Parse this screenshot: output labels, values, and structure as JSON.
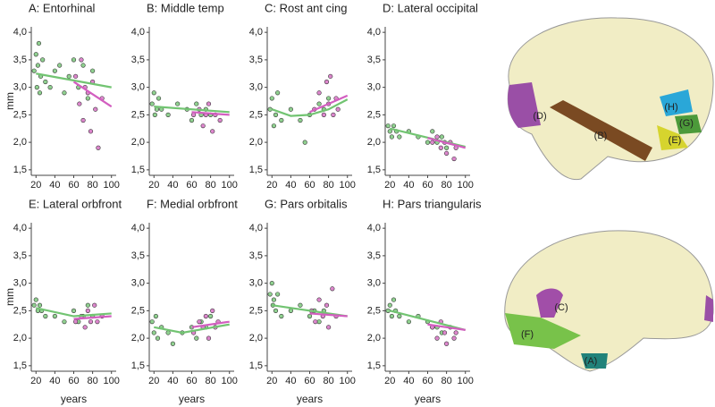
{
  "chart_data": [
    {
      "type": "scatter",
      "title": "A: Entorhinal",
      "ylabel": "mm",
      "xlim": [
        15,
        105
      ],
      "ylim": [
        1.4,
        4.1
      ],
      "xticks": [
        20,
        40,
        60,
        80,
        100
      ],
      "yticks": [
        {
          "value": 1.5,
          "label": "1,5"
        },
        {
          "value": 2,
          "label": "2,0"
        },
        {
          "value": 2.5,
          "label": "2,5"
        },
        {
          "value": 3,
          "label": "3,0"
        },
        {
          "value": 3.5,
          "label": "3,5"
        },
        {
          "value": 4,
          "label": "4,0"
        }
      ],
      "series": [
        {
          "kind": "points",
          "color": "#8fd08f",
          "x": [
            18,
            20,
            21,
            22,
            23,
            24,
            25,
            27,
            30,
            35,
            40,
            45,
            50,
            55,
            60,
            65,
            70,
            75,
            80
          ],
          "values": [
            3.3,
            3.6,
            3.0,
            3.4,
            3.8,
            2.9,
            3.2,
            3.5,
            3.1,
            3.0,
            3.3,
            3.4,
            2.9,
            3.2,
            3.5,
            3.0,
            3.4,
            2.8,
            3.3
          ]
        },
        {
          "kind": "points",
          "color": "#dc86cc",
          "x": [
            62,
            66,
            68,
            70,
            72,
            75,
            78,
            80,
            83,
            86,
            90
          ],
          "values": [
            3.2,
            2.7,
            3.5,
            2.4,
            3.0,
            2.9,
            2.2,
            3.1,
            2.6,
            1.9,
            2.8
          ]
        },
        {
          "kind": "line",
          "color": "#72c472",
          "x": [
            20,
            100
          ],
          "values": [
            3.25,
            3.0
          ]
        },
        {
          "kind": "line",
          "color": "#d35ec0",
          "x": [
            60,
            100
          ],
          "values": [
            3.1,
            2.65
          ]
        }
      ]
    },
    {
      "type": "scatter",
      "title": "B: Middle temp",
      "xlim": [
        15,
        105
      ],
      "ylim": [
        1.4,
        4.1
      ],
      "xticks": [
        20,
        40,
        60,
        80,
        100
      ],
      "yticks": [
        {
          "value": 1.5,
          "label": "1,5"
        },
        {
          "value": 2,
          "label": "2,0"
        },
        {
          "value": 2.5,
          "label": "2,5"
        },
        {
          "value": 3,
          "label": "3,0"
        },
        {
          "value": 3.5,
          "label": "3,5"
        },
        {
          "value": 4,
          "label": "4,0"
        }
      ],
      "series": [
        {
          "kind": "points",
          "color": "#8fd08f",
          "x": [
            18,
            20,
            21,
            23,
            25,
            28,
            35,
            45,
            55,
            60,
            65,
            70,
            75,
            80
          ],
          "values": [
            2.7,
            2.9,
            2.5,
            2.6,
            2.8,
            2.6,
            2.5,
            2.7,
            2.6,
            2.4,
            2.7,
            2.5,
            2.6,
            2.5
          ]
        },
        {
          "kind": "points",
          "color": "#dc86cc",
          "x": [
            62,
            68,
            72,
            75,
            78,
            82,
            85,
            90
          ],
          "values": [
            2.5,
            2.6,
            2.3,
            2.5,
            2.7,
            2.2,
            2.5,
            2.4
          ]
        },
        {
          "kind": "line",
          "color": "#72c472",
          "x": [
            20,
            100
          ],
          "values": [
            2.65,
            2.55
          ]
        },
        {
          "kind": "line",
          "color": "#d35ec0",
          "x": [
            60,
            100
          ],
          "values": [
            2.55,
            2.5
          ]
        }
      ]
    },
    {
      "type": "scatter",
      "title": "C: Rost ant cing",
      "xlim": [
        15,
        105
      ],
      "ylim": [
        1.4,
        4.1
      ],
      "xticks": [
        20,
        40,
        60,
        80,
        100
      ],
      "yticks": [
        {
          "value": 1.5,
          "label": "1,5"
        },
        {
          "value": 2,
          "label": "2,0"
        },
        {
          "value": 2.5,
          "label": "2,5"
        },
        {
          "value": 3,
          "label": "3,0"
        },
        {
          "value": 3.5,
          "label": "3,5"
        },
        {
          "value": 4,
          "label": "4,0"
        }
      ],
      "series": [
        {
          "kind": "points",
          "color": "#8fd08f",
          "x": [
            18,
            20,
            22,
            24,
            26,
            30,
            40,
            50,
            55,
            60,
            70,
            75,
            80
          ],
          "values": [
            2.6,
            2.8,
            2.3,
            2.5,
            2.9,
            2.4,
            2.6,
            2.4,
            2.0,
            2.5,
            2.7,
            2.6,
            2.8
          ]
        },
        {
          "kind": "points",
          "color": "#dc86cc",
          "x": [
            65,
            70,
            75,
            78,
            80,
            82,
            85,
            88,
            90
          ],
          "values": [
            2.6,
            2.9,
            2.5,
            3.1,
            2.7,
            3.2,
            2.5,
            2.8,
            2.6
          ]
        },
        {
          "kind": "line",
          "color": "#72c472",
          "x": [
            20,
            40,
            60,
            80,
            100
          ],
          "values": [
            2.6,
            2.48,
            2.5,
            2.6,
            2.78
          ]
        },
        {
          "kind": "line",
          "color": "#d35ec0",
          "x": [
            60,
            100
          ],
          "values": [
            2.55,
            2.85
          ]
        }
      ]
    },
    {
      "type": "scatter",
      "title": "D: Lateral occipital",
      "xlim": [
        15,
        105
      ],
      "ylim": [
        1.4,
        4.1
      ],
      "xticks": [
        20,
        40,
        60,
        80,
        100
      ],
      "yticks": [
        {
          "value": 1.5,
          "label": "1,5"
        },
        {
          "value": 2,
          "label": "2,0"
        },
        {
          "value": 2.5,
          "label": "2,5"
        },
        {
          "value": 3,
          "label": "3,0"
        },
        {
          "value": 3.5,
          "label": "3,5"
        },
        {
          "value": 4,
          "label": "4,0"
        }
      ],
      "series": [
        {
          "kind": "points",
          "color": "#8fd08f",
          "x": [
            18,
            20,
            22,
            24,
            27,
            30,
            40,
            50,
            60,
            65,
            70,
            75,
            80
          ],
          "values": [
            2.3,
            2.2,
            2.1,
            2.3,
            2.2,
            2.1,
            2.2,
            2.1,
            2.0,
            2.2,
            2.0,
            2.1,
            1.9
          ]
        },
        {
          "kind": "points",
          "color": "#dc86cc",
          "x": [
            65,
            70,
            74,
            78,
            80,
            84,
            88,
            90
          ],
          "values": [
            2.0,
            2.1,
            1.9,
            2.0,
            1.8,
            2.0,
            1.7,
            1.9
          ]
        },
        {
          "kind": "line",
          "color": "#72c472",
          "x": [
            20,
            100
          ],
          "values": [
            2.25,
            1.92
          ]
        },
        {
          "kind": "line",
          "color": "#d35ec0",
          "x": [
            60,
            100
          ],
          "values": [
            2.08,
            1.9
          ]
        }
      ]
    },
    {
      "type": "scatter",
      "title": "E: Lateral orbfront",
      "ylabel": "mm",
      "xlabel": "years",
      "xlim": [
        15,
        105
      ],
      "ylim": [
        1.4,
        4.1
      ],
      "xticks": [
        20,
        40,
        60,
        80,
        100
      ],
      "yticks": [
        {
          "value": 1.5,
          "label": "1,5"
        },
        {
          "value": 2,
          "label": "2,0"
        },
        {
          "value": 2.5,
          "label": "2,5"
        },
        {
          "value": 3,
          "label": "3,0"
        },
        {
          "value": 3.5,
          "label": "3,5"
        },
        {
          "value": 4,
          "label": "4,0"
        }
      ],
      "series": [
        {
          "kind": "points",
          "color": "#8fd08f",
          "x": [
            18,
            20,
            22,
            24,
            26,
            30,
            40,
            50,
            60,
            65,
            70,
            75,
            80
          ],
          "values": [
            2.6,
            2.7,
            2.5,
            2.6,
            2.5,
            2.4,
            2.4,
            2.3,
            2.5,
            2.3,
            2.4,
            2.6,
            2.4
          ]
        },
        {
          "kind": "points",
          "color": "#dc86cc",
          "x": [
            62,
            68,
            72,
            75,
            78,
            82,
            85,
            90
          ],
          "values": [
            2.3,
            2.4,
            2.2,
            2.5,
            2.3,
            2.6,
            2.3,
            2.4
          ]
        },
        {
          "kind": "line",
          "color": "#72c472",
          "x": [
            20,
            60,
            100
          ],
          "values": [
            2.55,
            2.4,
            2.45
          ]
        },
        {
          "kind": "line",
          "color": "#d35ec0",
          "x": [
            60,
            100
          ],
          "values": [
            2.35,
            2.4
          ]
        }
      ]
    },
    {
      "type": "scatter",
      "title": "F: Medial orbfront",
      "xlabel": "years",
      "xlim": [
        15,
        105
      ],
      "ylim": [
        1.4,
        4.1
      ],
      "xticks": [
        20,
        40,
        60,
        80,
        100
      ],
      "yticks": [
        {
          "value": 1.5,
          "label": "1,5"
        },
        {
          "value": 2,
          "label": "2,0"
        },
        {
          "value": 2.5,
          "label": "2,5"
        },
        {
          "value": 3,
          "label": "3,0"
        },
        {
          "value": 3.5,
          "label": "3,5"
        },
        {
          "value": 4,
          "label": "4,0"
        }
      ],
      "series": [
        {
          "kind": "points",
          "color": "#8fd08f",
          "x": [
            18,
            20,
            22,
            24,
            28,
            35,
            40,
            50,
            60,
            65,
            70,
            75,
            80
          ],
          "values": [
            2.3,
            2.1,
            2.4,
            2.0,
            2.2,
            2.1,
            1.9,
            2.1,
            2.2,
            2.0,
            2.3,
            2.2,
            2.4
          ]
        },
        {
          "kind": "points",
          "color": "#dc86cc",
          "x": [
            62,
            68,
            72,
            75,
            78,
            82,
            85,
            88
          ],
          "values": [
            2.1,
            2.3,
            2.2,
            2.4,
            2.0,
            2.5,
            2.2,
            2.3
          ]
        },
        {
          "kind": "line",
          "color": "#72c472",
          "x": [
            20,
            50,
            100
          ],
          "values": [
            2.2,
            2.1,
            2.25
          ]
        },
        {
          "kind": "line",
          "color": "#d35ec0",
          "x": [
            60,
            100
          ],
          "values": [
            2.2,
            2.3
          ]
        }
      ]
    },
    {
      "type": "scatter",
      "title": "G: Pars orbitalis",
      "xlabel": "years",
      "xlim": [
        15,
        105
      ],
      "ylim": [
        1.4,
        4.1
      ],
      "xticks": [
        20,
        40,
        60,
        80,
        100
      ],
      "yticks": [
        {
          "value": 1.5,
          "label": "1,5"
        },
        {
          "value": 2,
          "label": "2,0"
        },
        {
          "value": 2.5,
          "label": "2,5"
        },
        {
          "value": 3,
          "label": "3,0"
        },
        {
          "value": 3.5,
          "label": "3,5"
        },
        {
          "value": 4,
          "label": "4,0"
        }
      ],
      "series": [
        {
          "kind": "points",
          "color": "#8fd08f",
          "x": [
            18,
            20,
            21,
            22,
            24,
            26,
            30,
            40,
            50,
            60,
            65,
            70,
            75
          ],
          "values": [
            2.8,
            3.0,
            2.6,
            2.7,
            2.5,
            2.8,
            2.4,
            2.5,
            2.6,
            2.4,
            2.5,
            2.3,
            2.5
          ]
        },
        {
          "kind": "points",
          "color": "#dc86cc",
          "x": [
            62,
            66,
            70,
            74,
            78,
            80,
            84,
            88
          ],
          "values": [
            2.5,
            2.3,
            2.7,
            2.4,
            2.6,
            2.2,
            2.9,
            2.4
          ]
        },
        {
          "kind": "line",
          "color": "#72c472",
          "x": [
            20,
            100
          ],
          "values": [
            2.6,
            2.4
          ]
        },
        {
          "kind": "line",
          "color": "#d35ec0",
          "x": [
            60,
            100
          ],
          "values": [
            2.45,
            2.4
          ]
        }
      ]
    },
    {
      "type": "scatter",
      "title": "H: Pars triangularis",
      "xlabel": "years",
      "xlim": [
        15,
        105
      ],
      "ylim": [
        1.4,
        4.1
      ],
      "xticks": [
        20,
        40,
        60,
        80,
        100
      ],
      "yticks": [
        {
          "value": 1.5,
          "label": "1,5"
        },
        {
          "value": 2,
          "label": "2,0"
        },
        {
          "value": 2.5,
          "label": "2,5"
        },
        {
          "value": 3,
          "label": "3,0"
        },
        {
          "value": 3.5,
          "label": "3,5"
        },
        {
          "value": 4,
          "label": "4,0"
        }
      ],
      "series": [
        {
          "kind": "points",
          "color": "#8fd08f",
          "x": [
            18,
            20,
            22,
            24,
            26,
            30,
            40,
            50,
            60,
            65,
            70,
            75
          ],
          "values": [
            2.5,
            2.6,
            2.4,
            2.7,
            2.5,
            2.4,
            2.3,
            2.4,
            2.3,
            2.2,
            2.2,
            2.1
          ]
        },
        {
          "kind": "points",
          "color": "#dc86cc",
          "x": [
            65,
            70,
            74,
            78,
            80,
            84,
            88,
            90
          ],
          "values": [
            2.2,
            2.0,
            2.3,
            2.1,
            1.9,
            2.2,
            2.0,
            2.1
          ]
        },
        {
          "kind": "line",
          "color": "#72c472",
          "x": [
            20,
            100
          ],
          "values": [
            2.5,
            2.15
          ]
        },
        {
          "kind": "line",
          "color": "#d35ec0",
          "x": [
            60,
            100
          ],
          "values": [
            2.25,
            2.15
          ]
        }
      ]
    }
  ],
  "brain": {
    "labels": [
      "(D)",
      "(B)",
      "(H)",
      "(G)",
      "(E)",
      "(C)",
      "(F)",
      "(A)"
    ]
  }
}
